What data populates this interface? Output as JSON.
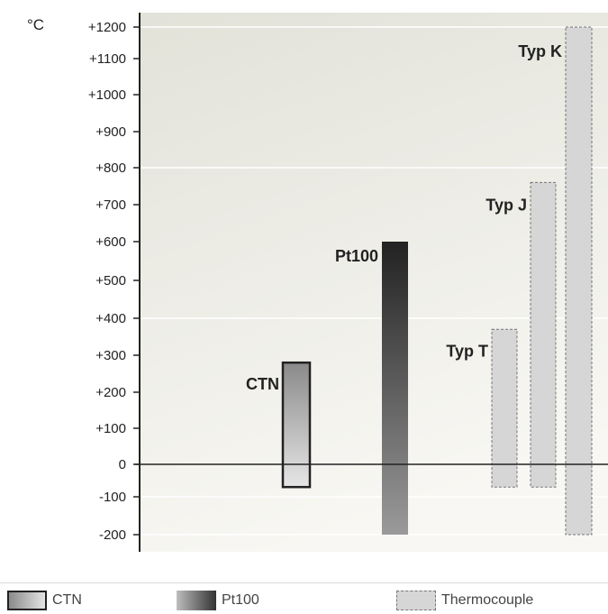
{
  "chart_data": {
    "type": "bar",
    "unit_label": "°C",
    "categories": [
      "CTN",
      "Pt100",
      "Typ T",
      "Typ J",
      "Typ K"
    ],
    "ranges": [
      {
        "name": "CTN",
        "min": -70,
        "max": 280,
        "style": "ctn"
      },
      {
        "name": "Pt100",
        "min": -200,
        "max": 600,
        "style": "pt100"
      },
      {
        "name": "Typ T",
        "min": -70,
        "max": 370,
        "style": "thermocouple"
      },
      {
        "name": "Typ J",
        "min": -70,
        "max": 760,
        "style": "thermocouple"
      },
      {
        "name": "Typ K",
        "min": -200,
        "max": 1200,
        "style": "thermocouple"
      }
    ],
    "yticks": [
      "+1200",
      "+1100",
      "+1000",
      "+900",
      "+800",
      "+700",
      "+600",
      "+500",
      "+400",
      "+300",
      "+200",
      "+100",
      "0",
      "-100",
      "-200"
    ],
    "ytick_values": [
      1200,
      1100,
      1000,
      900,
      800,
      700,
      600,
      500,
      400,
      300,
      200,
      100,
      0,
      -100,
      -200
    ],
    "ylim": [
      -200,
      1200
    ],
    "grid": true,
    "colors": {
      "background_top": "#e2e2d9",
      "background_bottom": "#f7f6f2",
      "pt100_top": "#222222",
      "pt100_bottom": "#9a9a9a",
      "thermocouple_fill": "#d6d6d6",
      "axis": "#222222"
    }
  },
  "legend": {
    "ctn_label": "CTN",
    "pt100_label": "Pt100",
    "thermocouple_label": "Thermocouple"
  }
}
